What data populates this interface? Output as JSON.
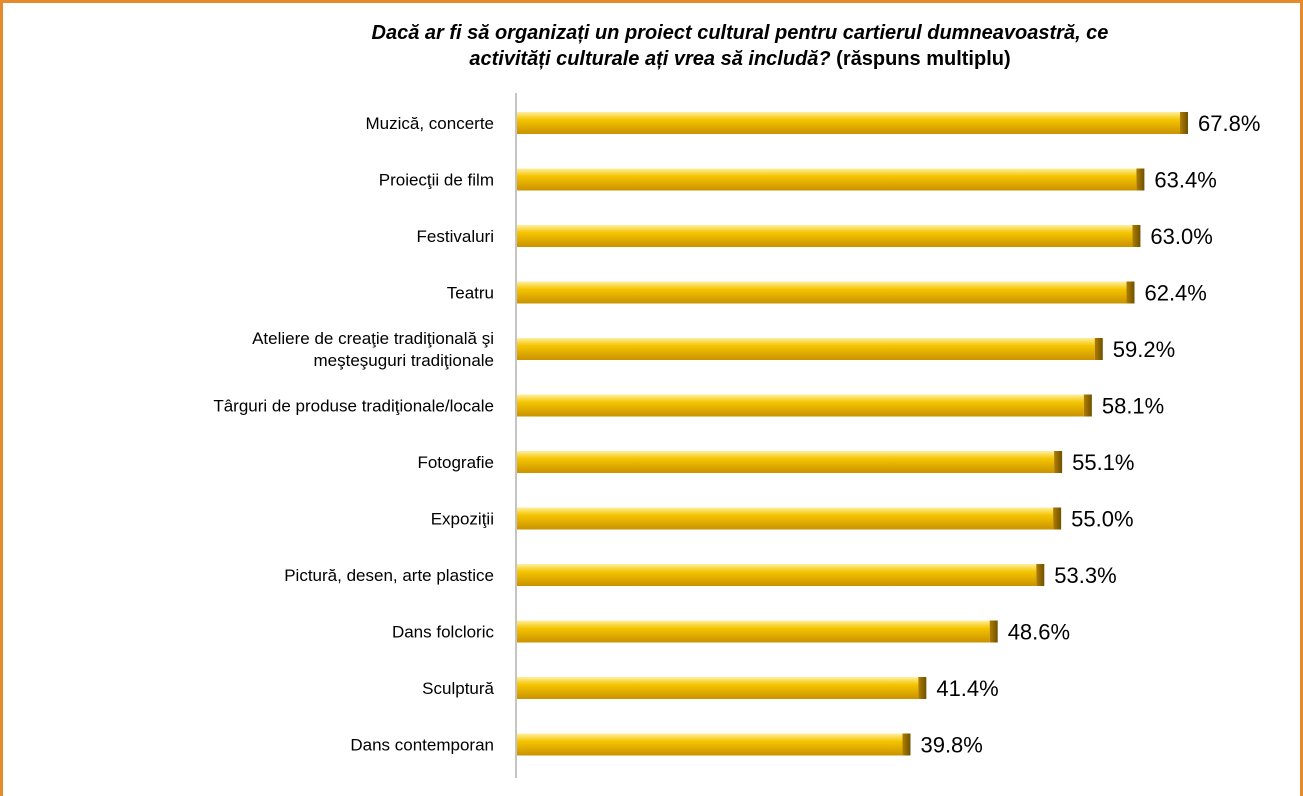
{
  "chart_data": {
    "type": "bar",
    "orientation": "horizontal",
    "title_line1": "Dacă ar fi să organizați un proiect cultural pentru cartierul dumneavoastră, ce",
    "title_line2_italic": "activități culturale ați vrea să includă?",
    "title_line2_plain": " (răspuns multiplu)",
    "categories": [
      [
        "Muzică, concerte"
      ],
      [
        "Proiecţii de film"
      ],
      [
        "Festivaluri"
      ],
      [
        "Teatru"
      ],
      [
        "Ateliere de creaţie tradiţională şi",
        "meşteşuguri tradiţionale"
      ],
      [
        "Târguri de produse tradiţionale/locale"
      ],
      [
        "Fotografie"
      ],
      [
        "Expoziţii"
      ],
      [
        "Pictură, desen, arte plastice"
      ],
      [
        "Dans folcloric"
      ],
      [
        "Sculptură"
      ],
      [
        "Dans contemporan"
      ]
    ],
    "values": [
      67.8,
      63.4,
      63.0,
      62.4,
      59.2,
      58.1,
      55.1,
      55.0,
      53.3,
      48.6,
      41.4,
      39.8
    ],
    "value_labels": [
      "67.8%",
      "63.4%",
      "63.0%",
      "62.4%",
      "59.2%",
      "58.1%",
      "55.1%",
      "55.0%",
      "53.3%",
      "48.6%",
      "41.4%",
      "39.8%"
    ],
    "xlim": [
      0,
      100
    ],
    "grid": false,
    "legend": "none",
    "bar_color": "#e8b000",
    "bar_highlight": "#ffd84a",
    "bar_shadow": "#9a7300",
    "frame_color": "#e68a2e"
  }
}
